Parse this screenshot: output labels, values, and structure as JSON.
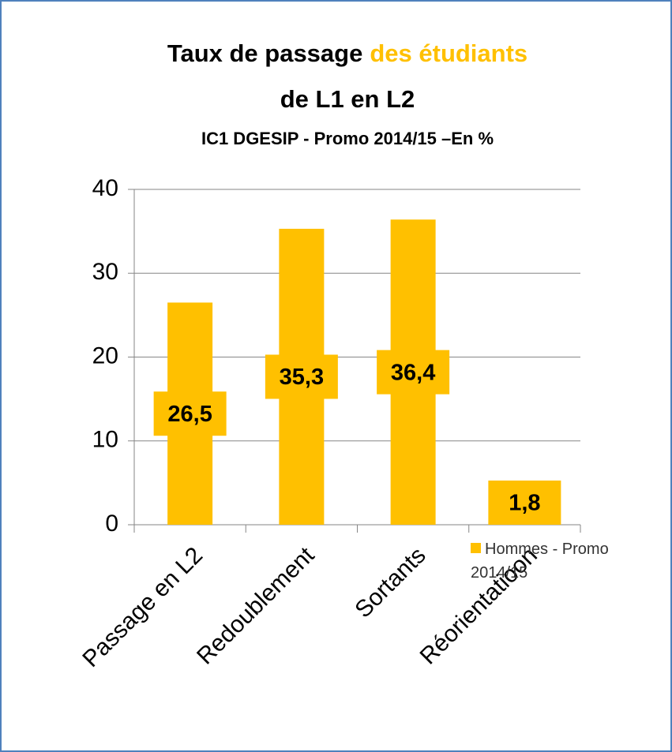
{
  "chart_data": {
    "type": "bar",
    "title_parts": [
      "Taux de passage",
      "des étudiants"
    ],
    "title_line2": "de L1 en L2",
    "title_accent_color": "#ffc000",
    "subtitle": "IC1 DGESIP - Promo 2014/15 –En %",
    "categories": [
      "Passage en L2",
      "Redoublement",
      "Sortants",
      "Réorientatioon"
    ],
    "series": [
      {
        "name": "Hommes - Promo 2014/15",
        "color": "#ffc000",
        "values": [
          26.5,
          35.3,
          36.4,
          1.8
        ],
        "value_labels": [
          "26,5",
          "35,3",
          "36,4",
          "1,8"
        ]
      }
    ],
    "ylim": [
      0,
      40
    ],
    "yticks": [
      0,
      10,
      20,
      30,
      40
    ],
    "grid": true,
    "legend": "bottom-right"
  }
}
